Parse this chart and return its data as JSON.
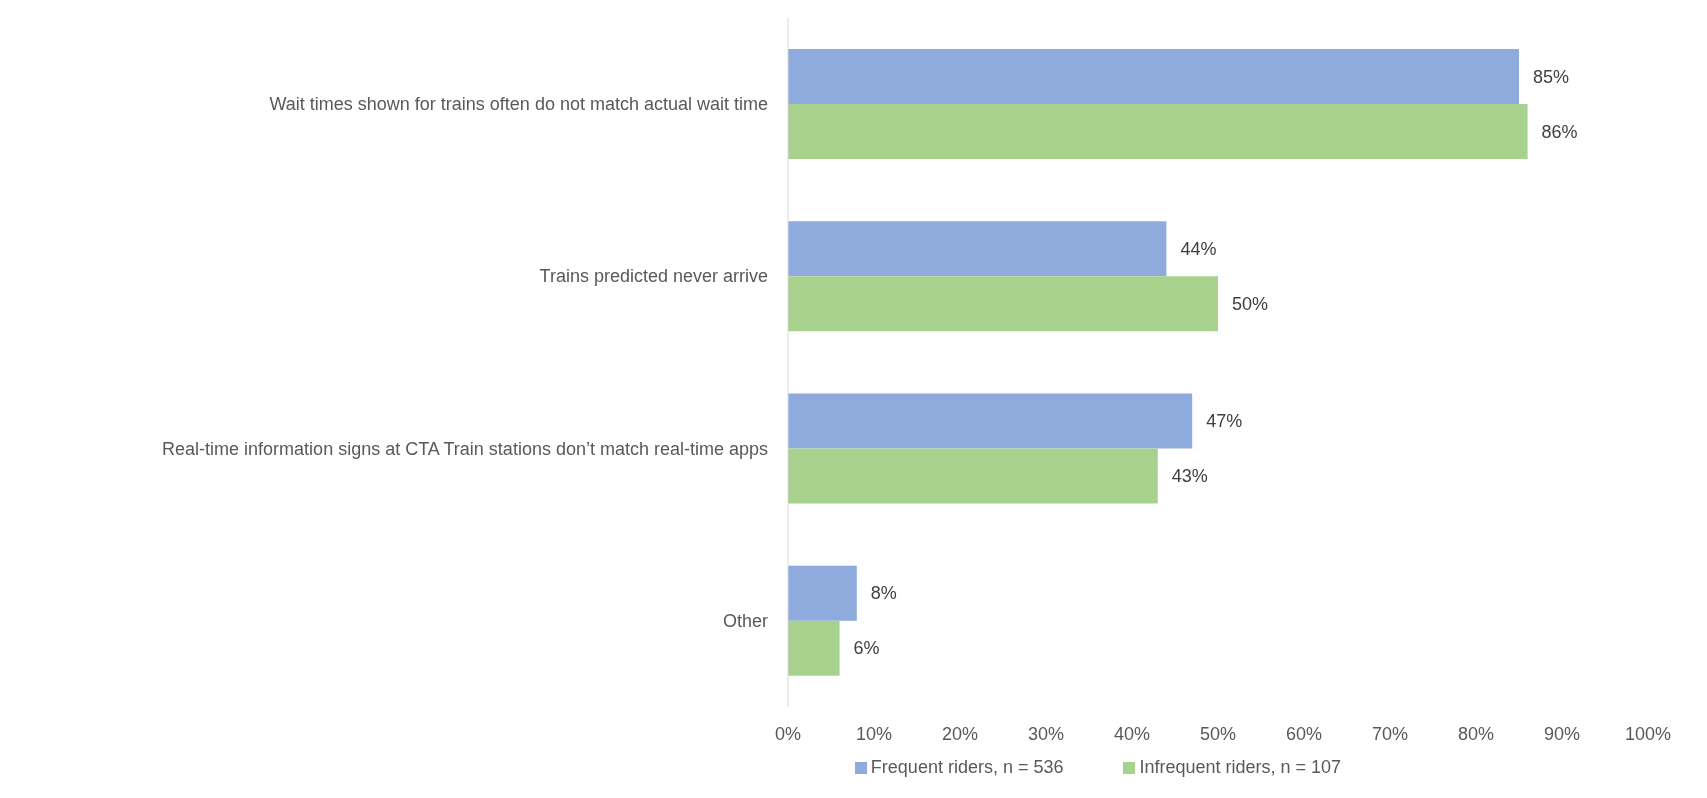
{
  "chart_data": {
    "type": "bar",
    "orientation": "horizontal",
    "categories": [
      "Wait times shown for trains often do not match actual wait time",
      "Trains predicted never arrive",
      "Real-time information signs at CTA Train stations don’t match real-time apps",
      "Other"
    ],
    "series": [
      {
        "name": "Frequent riders, n = 536",
        "color": "#8faadc",
        "values": [
          85,
          44,
          47,
          8
        ],
        "value_labels": [
          "85%",
          "44%",
          "47%",
          "8%"
        ]
      },
      {
        "name": "Infrequent riders, n = 107",
        "color": "#a9d18e",
        "values": [
          86,
          50,
          43,
          6
        ],
        "value_labels": [
          "86%",
          "50%",
          "43%",
          "6%"
        ]
      }
    ],
    "xlim": [
      0,
      100
    ],
    "xticks": [
      {
        "value": 0,
        "label": "0%"
      },
      {
        "value": 10,
        "label": "10%"
      },
      {
        "value": 20,
        "label": "20%"
      },
      {
        "value": 30,
        "label": "30%"
      },
      {
        "value": 40,
        "label": "40%"
      },
      {
        "value": 50,
        "label": "50%"
      },
      {
        "value": 60,
        "label": "60%"
      },
      {
        "value": 70,
        "label": "70%"
      },
      {
        "value": 80,
        "label": "80%"
      },
      {
        "value": 90,
        "label": "90%"
      },
      {
        "value": 100,
        "label": "100%"
      }
    ],
    "grid": false,
    "legend": "bottom"
  }
}
